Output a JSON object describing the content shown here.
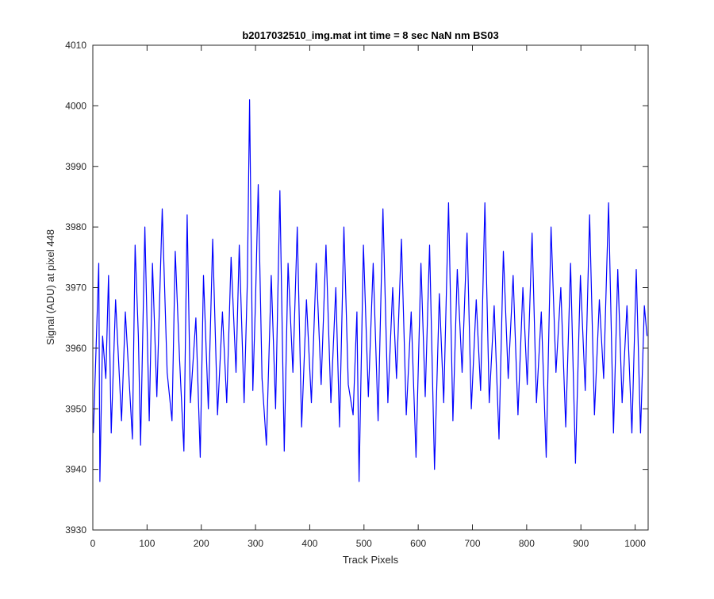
{
  "chart_data": {
    "type": "line",
    "title": "b2017032510_img.mat int time = 8 sec  NaN nm BS03",
    "xlabel": "Track Pixels",
    "ylabel": "Signal (ADU) at pixel 448",
    "xlim": [
      0,
      1024
    ],
    "ylim": [
      3930,
      4010
    ],
    "xticks": [
      0,
      100,
      200,
      300,
      400,
      500,
      600,
      700,
      800,
      900,
      1000
    ],
    "yticks": [
      3930,
      3940,
      3950,
      3960,
      3970,
      3980,
      3990,
      4000,
      4010
    ],
    "grid": false,
    "legend": "none",
    "series": [
      {
        "color": "#0000ff",
        "x": [
          1,
          11,
          13,
          18,
          24,
          29,
          34,
          42,
          53,
          60,
          73,
          78,
          84,
          88,
          96,
          104,
          110,
          118,
          128,
          137,
          146,
          152,
          160,
          168,
          174,
          180,
          190,
          198,
          204,
          213,
          221,
          230,
          239,
          247,
          255,
          264,
          270,
          279,
          285,
          289,
          295,
          300,
          305,
          312,
          320,
          329,
          337,
          345,
          353,
          360,
          369,
          377,
          385,
          394,
          403,
          412,
          421,
          430,
          439,
          448,
          455,
          463,
          471,
          480,
          487,
          491,
          499,
          508,
          517,
          526,
          535,
          544,
          553,
          560,
          569,
          578,
          587,
          596,
          605,
          613,
          621,
          630,
          639,
          647,
          656,
          664,
          672,
          681,
          690,
          698,
          707,
          715,
          723,
          731,
          740,
          749,
          757,
          766,
          775,
          784,
          793,
          801,
          810,
          818,
          827,
          836,
          845,
          854,
          863,
          872,
          881,
          890,
          899,
          908,
          916,
          925,
          934,
          942,
          951,
          960,
          968,
          976,
          985,
          994,
          1002,
          1010,
          1017,
          1022
        ],
        "values": [
          3946,
          3974,
          3938,
          3962,
          3955,
          3972,
          3946,
          3968,
          3948,
          3966,
          3945,
          3977,
          3962,
          3944,
          3980,
          3948,
          3974,
          3952,
          3983,
          3956,
          3948,
          3976,
          3958,
          3943,
          3982,
          3951,
          3965,
          3942,
          3972,
          3950,
          3978,
          3949,
          3966,
          3951,
          3975,
          3956,
          3977,
          3951,
          3971,
          4001,
          3953,
          3968,
          3987,
          3955,
          3944,
          3972,
          3950,
          3986,
          3943,
          3974,
          3956,
          3980,
          3947,
          3968,
          3951,
          3974,
          3954,
          3977,
          3951,
          3970,
          3947,
          3980,
          3954,
          3949,
          3966,
          3938,
          3977,
          3952,
          3974,
          3948,
          3983,
          3951,
          3970,
          3955,
          3978,
          3949,
          3966,
          3942,
          3974,
          3952,
          3977,
          3940,
          3969,
          3951,
          3984,
          3948,
          3973,
          3956,
          3979,
          3950,
          3968,
          3953,
          3984,
          3951,
          3967,
          3945,
          3976,
          3955,
          3972,
          3949,
          3970,
          3954,
          3979,
          3951,
          3966,
          3942,
          3980,
          3956,
          3970,
          3947,
          3974,
          3941,
          3972,
          3953,
          3982,
          3949,
          3968,
          3955,
          3984,
          3946,
          3973,
          3951,
          3967,
          3946,
          3973,
          3946,
          3967,
          3962
        ]
      }
    ]
  }
}
